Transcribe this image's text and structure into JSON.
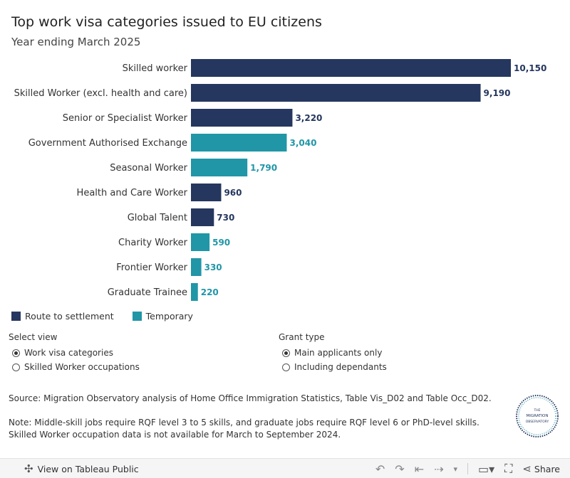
{
  "chart_data": {
    "type": "bar",
    "orientation": "horizontal",
    "title": "Top work visa categories issued to EU citizens",
    "subtitle": "Year ending March 2025",
    "categories": [
      "Skilled worker",
      "Skilled Worker (excl. health and care)",
      "Senior or Specialist Worker",
      "Government Authorised Exchange",
      "Seasonal Worker",
      "Health and Care Worker",
      "Global Talent",
      "Charity Worker",
      "Frontier Worker",
      "Graduate Trainee"
    ],
    "values": [
      10150,
      9190,
      3220,
      3040,
      1790,
      960,
      730,
      590,
      330,
      220
    ],
    "value_labels": [
      "10,150",
      "9,190",
      "3,220",
      "3,040",
      "1,790",
      "960",
      "730",
      "590",
      "330",
      "220"
    ],
    "groups": [
      "Route to settlement",
      "Route to settlement",
      "Route to settlement",
      "Temporary",
      "Temporary",
      "Route to settlement",
      "Route to settlement",
      "Temporary",
      "Temporary",
      "Temporary"
    ],
    "legend": [
      {
        "name": "Route to settlement",
        "color": "#25375f"
      },
      {
        "name": "Temporary",
        "color": "#2096a7"
      }
    ],
    "legend_position": "bottom-left",
    "xlim": [
      0,
      10150
    ],
    "grid": false,
    "xlabel": "",
    "ylabel": ""
  },
  "controls": {
    "view": {
      "title": "Select view",
      "options": [
        "Work visa categories",
        "Skilled Worker occupations"
      ],
      "selected": 0
    },
    "grant": {
      "title": "Grant type",
      "options": [
        "Main applicants only",
        "Including dependants"
      ],
      "selected": 0
    }
  },
  "source": "Source: Migration Observatory analysis of Home Office Immigration Statistics, Table Vis_D02 and Table Occ_D02.",
  "note": "Note: Middle-skill jobs require RQF level 3 to 5 skills, and graduate jobs require RQF level 6 or PhD-level skills. Skilled Worker occupation data is not available for March to September 2024.",
  "logo": {
    "line1": "THE",
    "line2": "MIGRATION",
    "line3": "OBSERVATORY"
  },
  "toolbar": {
    "view_on": "View on Tableau Public",
    "share": "Share"
  }
}
